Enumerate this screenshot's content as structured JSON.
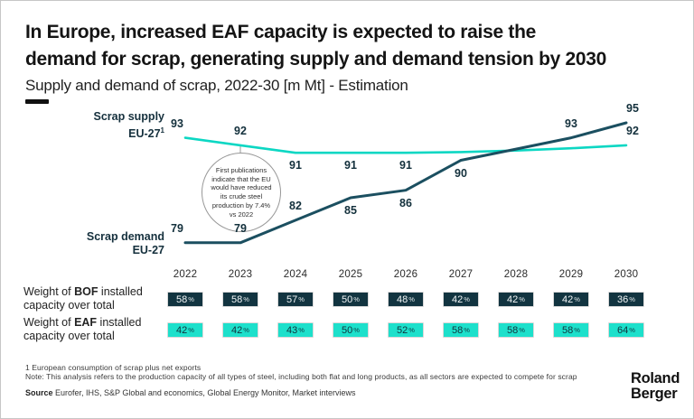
{
  "header": {
    "title_line1": "In Europe, increased EAF capacity is expected to raise the",
    "title_line2": "demand for scrap, generating supply and demand tension by 2030",
    "subtitle": "Supply and demand of scrap, 2022-30 [m Mt] - Estimation"
  },
  "chart_data": {
    "type": "line",
    "title": "Supply and demand of scrap, 2022-30 [m Mt] - Estimation",
    "x": [
      2022,
      2023,
      2024,
      2025,
      2026,
      2027,
      2028,
      2029,
      2030
    ],
    "ylim": [
      78,
      96
    ],
    "grid": false,
    "legend_position": "left-of-lines",
    "series": [
      {
        "name": "Scrap supply EU-27¹",
        "color": "#0cd7c3",
        "values": [
          93,
          92,
          91,
          91,
          91,
          91.1,
          91.3,
          91.6,
          92
        ],
        "labels": [
          "93",
          "92",
          "91",
          "91",
          "91",
          "",
          "",
          "",
          "92"
        ],
        "label_side": [
          "above",
          "above",
          "below",
          "below",
          "below",
          "",
          "",
          "",
          "above"
        ]
      },
      {
        "name": "Scrap demand EU-27",
        "color": "#1b4f60",
        "values": [
          79,
          79,
          82,
          85,
          86,
          90,
          91.5,
          93,
          95
        ],
        "labels": [
          "79",
          "79",
          "82",
          "85",
          "86",
          "90",
          "",
          "93",
          "95"
        ],
        "label_side": [
          "above",
          "above",
          "above",
          "below",
          "below",
          "below",
          "",
          "above",
          "above"
        ]
      }
    ],
    "annotation": "First publications indicate that the EU would have reduced its crude steel production by 7.4% vs 2022"
  },
  "chart_labels": {
    "supply_line1": "Scrap supply",
    "supply_line2": "EU-27",
    "supply_sup": "1",
    "demand_line1": "Scrap demand",
    "demand_line2": "EU-27"
  },
  "table": {
    "years": [
      "2022",
      "2023",
      "2024",
      "2025",
      "2026",
      "2027",
      "2028",
      "2029",
      "2030"
    ],
    "unit": "%",
    "rows": [
      {
        "label_prefix": "Weight of ",
        "label_strong": "BOF",
        "label_suffix": " installed capacity over total",
        "style": "dark",
        "values": [
          58,
          58,
          57,
          50,
          48,
          42,
          42,
          42,
          36
        ]
      },
      {
        "label_prefix": "Weight of ",
        "label_strong": "EAF",
        "label_suffix": " installed capacity over total",
        "style": "cyan",
        "values": [
          42,
          42,
          43,
          50,
          52,
          58,
          58,
          58,
          64
        ]
      }
    ]
  },
  "footer": {
    "footnote": "1 European consumption of scrap plus net exports",
    "note": "Note: This analysis refers to the production capacity of all types of steel, including both flat and long products, as all sectors are expected to compete for scrap",
    "source_label": "Source",
    "source_text": " Eurofer, IHS, S&P Global and economics, Global Energy Monitor, Market interviews",
    "logo_line1": "Roland",
    "logo_line2": "Berger"
  },
  "colors": {
    "accent_cyan": "#0cd7c3",
    "accent_dark_teal": "#1b4f60",
    "badge_dark_bg": "#123440",
    "badge_cyan_bg": "#1de0cb"
  }
}
